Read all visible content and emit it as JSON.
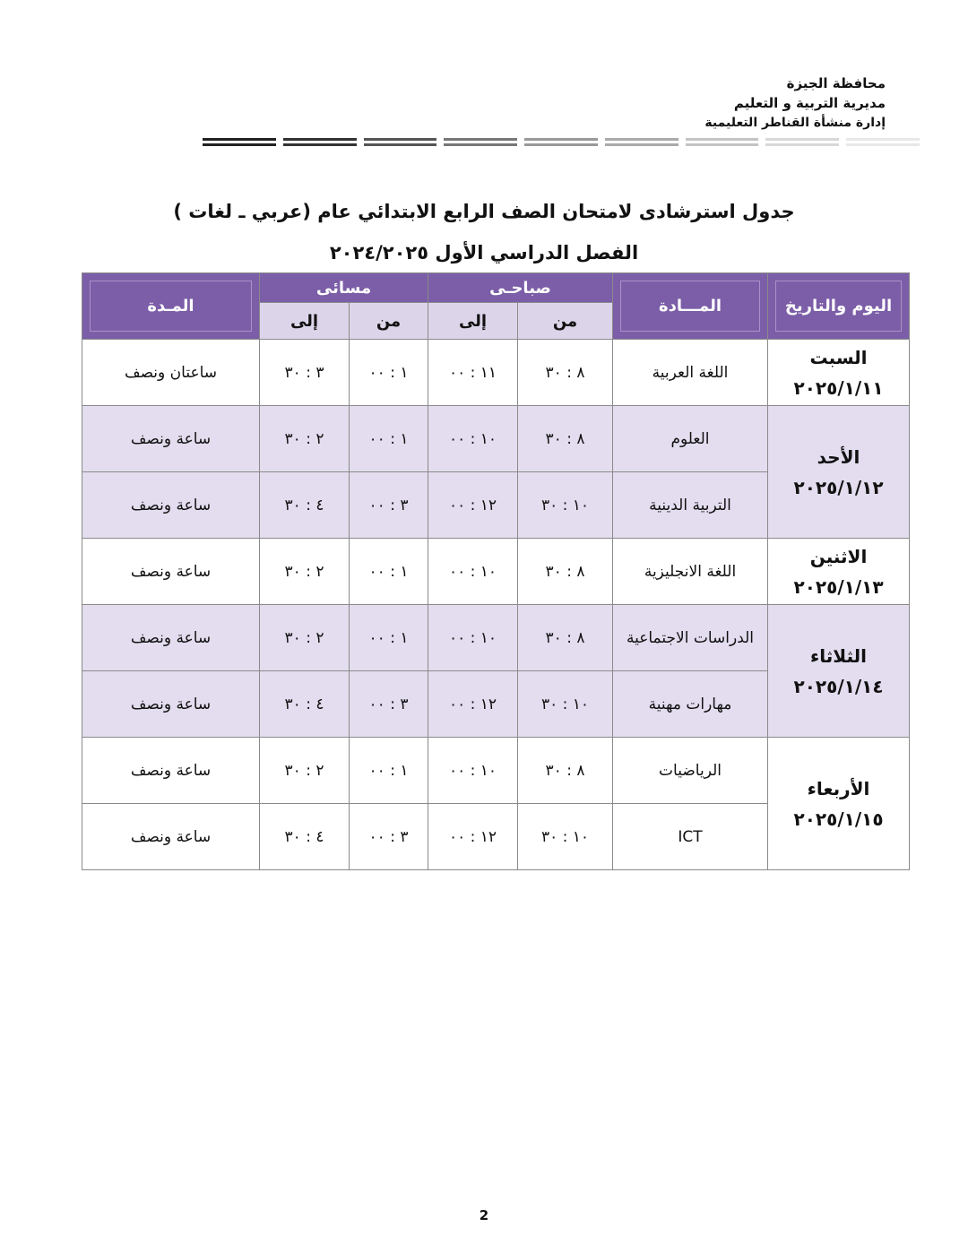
{
  "header": {
    "line1": "محافظة الجيزة",
    "line2": "مديرية التربية و التعليم",
    "line3": "إدارة منشأة القناطر التعليمية"
  },
  "title": "جدول استرشادى لامتحان الصف الرابع الابتدائي عام (عربي ـ لغات )",
  "subtitle": "الفصل الدراسي الأول ٢٠٢٤/٢٠٢٥",
  "table": {
    "headers": {
      "day": "اليوم والتاريخ",
      "subject": "المـــادة",
      "morning": "صباحـى",
      "evening": "مسائى",
      "duration": "المـدة",
      "from": "من",
      "to": "إلى"
    },
    "days": [
      {
        "day": "السبت",
        "date": "٢٠٢٥/١/١١",
        "shade": false,
        "rows": [
          {
            "subject": "اللغة العربية",
            "m_from": "٨ : ٣٠",
            "m_to": "١١ : ٠٠",
            "e_from": "١ : ٠٠",
            "e_to": "٣ : ٣٠",
            "duration": "ساعتان ونصف"
          }
        ]
      },
      {
        "day": "الأحد",
        "date": "٢٠٢٥/١/١٢",
        "shade": true,
        "rows": [
          {
            "subject": "العلوم",
            "m_from": "٨ : ٣٠",
            "m_to": "١٠ : ٠٠",
            "e_from": "١ : ٠٠",
            "e_to": "٢ : ٣٠",
            "duration": "ساعة ونصف"
          },
          {
            "subject": "التربية الدينية",
            "m_from": "١٠ : ٣٠",
            "m_to": "١٢ : ٠٠",
            "e_from": "٣ : ٠٠",
            "e_to": "٤ : ٣٠",
            "duration": "ساعة ونصف"
          }
        ]
      },
      {
        "day": "الاثنين",
        "date": "٢٠٢٥/١/١٣",
        "shade": false,
        "rows": [
          {
            "subject": "اللغة الانجليزية",
            "m_from": "٨ : ٣٠",
            "m_to": "١٠ : ٠٠",
            "e_from": "١ : ٠٠",
            "e_to": "٢ : ٣٠",
            "duration": "ساعة ونصف"
          }
        ]
      },
      {
        "day": "الثلاثاء",
        "date": "٢٠٢٥/١/١٤",
        "shade": true,
        "rows": [
          {
            "subject": "الدراسات الاجتماعية",
            "m_from": "٨ : ٣٠",
            "m_to": "١٠ : ٠٠",
            "e_from": "١ : ٠٠",
            "e_to": "٢ : ٣٠",
            "duration": "ساعة ونصف"
          },
          {
            "subject": "مهارات مهنية",
            "m_from": "١٠ : ٣٠",
            "m_to": "١٢ : ٠٠",
            "e_from": "٣ : ٠٠",
            "e_to": "٤ : ٣٠",
            "duration": "ساعة ونصف"
          }
        ]
      },
      {
        "day": "الأربعاء",
        "date": "٢٠٢٥/١/١٥",
        "shade": false,
        "rows": [
          {
            "subject": "الرياضيات",
            "m_from": "٨ : ٣٠",
            "m_to": "١٠ : ٠٠",
            "e_from": "١ : ٠٠",
            "e_to": "٢ : ٣٠",
            "duration": "ساعة ونصف"
          },
          {
            "subject": "ICT",
            "m_from": "١٠ : ٣٠",
            "m_to": "١٢ : ٠٠",
            "e_from": "٣ : ٠٠",
            "e_to": "٤ : ٣٠",
            "duration": "ساعة ونصف"
          }
        ]
      }
    ]
  },
  "page_number": "2",
  "colors": {
    "header_purple": "#7b5ea7",
    "subheader_lavender": "#dcd5ea",
    "row_shade": "#e3ddef"
  }
}
